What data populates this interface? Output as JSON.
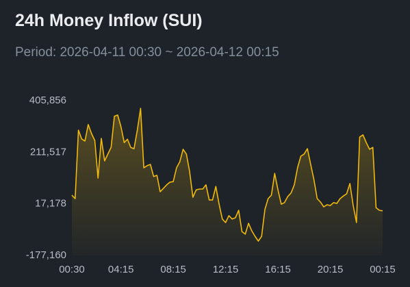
{
  "chart_data": {
    "type": "area-line",
    "title": "24h Money Inflow (SUI)",
    "subtitle": "Period: 2026-04-11 00:30 ~ 2026-04-12 00:15",
    "color": "#f0b90b",
    "categories": [
      "00:30",
      null,
      null,
      null,
      null,
      null,
      null,
      null,
      null,
      null,
      null,
      null,
      null,
      null,
      null,
      "04:15",
      null,
      null,
      null,
      null,
      null,
      null,
      null,
      null,
      null,
      null,
      null,
      null,
      null,
      null,
      null,
      "08:15",
      null,
      null,
      null,
      null,
      null,
      null,
      null,
      null,
      null,
      null,
      null,
      null,
      null,
      null,
      null,
      "12:15",
      null,
      null,
      null,
      null,
      null,
      null,
      null,
      null,
      null,
      null,
      null,
      null,
      null,
      null,
      null,
      "16:15",
      null,
      null,
      null,
      null,
      null,
      null,
      null,
      null,
      null,
      null,
      null,
      null,
      null,
      null,
      null,
      "20:15",
      null,
      null,
      null,
      null,
      null,
      null,
      null,
      null,
      null,
      null,
      null,
      null,
      null,
      null,
      null,
      "00:15"
    ],
    "values": [
      50000,
      37000,
      295000,
      262000,
      254000,
      316000,
      282000,
      256000,
      114000,
      264000,
      179000,
      205000,
      230000,
      347000,
      352000,
      308000,
      248000,
      261000,
      230000,
      225000,
      295000,
      377000,
      153000,
      161000,
      166000,
      120000,
      125000,
      63000,
      76000,
      89000,
      99000,
      101000,
      153000,
      176000,
      223000,
      205000,
      140000,
      42000,
      70000,
      73000,
      73000,
      89000,
      32000,
      32000,
      83000,
      16000,
      -40000,
      -53000,
      -27000,
      -40000,
      -35000,
      -7000,
      -87000,
      -97000,
      -56000,
      -84000,
      -105000,
      -123000,
      -105000,
      -4000,
      37000,
      50000,
      132000,
      70000,
      16000,
      22000,
      45000,
      58000,
      89000,
      153000,
      197000,
      205000,
      225000,
      166000,
      109000,
      37000,
      24000,
      6000,
      14000,
      11000,
      22000,
      19000,
      37000,
      47000,
      55000,
      94000,
      11000,
      -53000,
      269000,
      277000,
      248000,
      223000,
      230000,
      3000,
      -7000,
      -9000
    ],
    "ylim": [
      -177160,
      405856
    ],
    "yticks": [
      {
        "value": -177160,
        "label": "-177,160"
      },
      {
        "value": 17178,
        "label": "17,178"
      },
      {
        "value": 211517,
        "label": "211,517"
      },
      {
        "value": 405856,
        "label": "405,856"
      }
    ]
  }
}
